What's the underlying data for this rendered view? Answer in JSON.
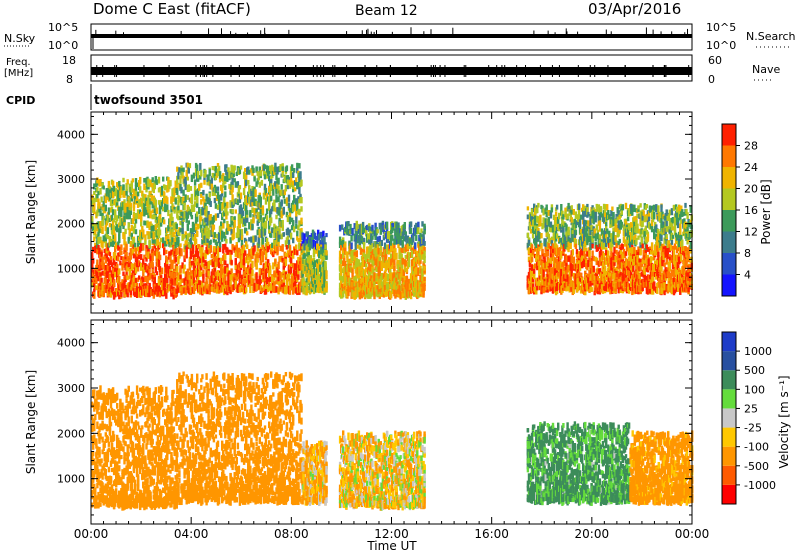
{
  "header": {
    "station": "Dome C East (fitACF)",
    "beam": "Beam 12",
    "date": "03/Apr/2016"
  },
  "params": {
    "nsky_label": "N.Sky",
    "nsky_ticks": [
      "10^5",
      "10^0"
    ],
    "nsearch_label": "N.Search",
    "freq_label": "Freq.",
    "freq_unit": "[MHz]",
    "freq_ticks": [
      "18",
      "8"
    ],
    "nave_label": "Nave",
    "nave_ticks": [
      "60",
      "0"
    ],
    "cpid_label": "CPID",
    "cpid_value": "twofsound 3501"
  },
  "chart_data": [
    {
      "type": "heatmap",
      "panel": "power",
      "ylabel": "Slant Range [km]",
      "ylim": [
        0,
        4500
      ],
      "yticks": [
        "4000",
        "3000",
        "2000",
        "1000"
      ],
      "colorbar": {
        "label": "Power [dB]",
        "ticks": [
          "28",
          "24",
          "20",
          "16",
          "12",
          "8",
          "4"
        ],
        "range": [
          0,
          32
        ]
      },
      "scatter_regions": [
        {
          "t_start": 0.0,
          "t_end": 3.4,
          "r_low": 400,
          "r_high": 3000,
          "level": 22
        },
        {
          "t_start": 3.4,
          "t_end": 8.4,
          "r_low": 500,
          "r_high": 3300,
          "level": 20
        },
        {
          "t_start": 8.4,
          "t_end": 9.4,
          "r_low": 500,
          "r_high": 1800,
          "level": 12
        },
        {
          "t_start": 9.9,
          "t_end": 13.3,
          "r_low": 400,
          "r_high": 2000,
          "level": 16
        },
        {
          "t_start": 17.4,
          "t_end": 24.0,
          "r_low": 500,
          "r_high": 2400,
          "level": 20
        }
      ]
    },
    {
      "type": "heatmap",
      "panel": "velocity",
      "ylabel": "Slant Range [km]",
      "xlabel": "Time UT",
      "xticks": [
        "00:00",
        "04:00",
        "08:00",
        "12:00",
        "16:00",
        "20:00",
        "00:00"
      ],
      "xlim": [
        0,
        24
      ],
      "ylim": [
        0,
        4500
      ],
      "yticks": [
        "4000",
        "3000",
        "2000",
        "1000"
      ],
      "colorbar": {
        "label": "Velocity [m s⁻¹]",
        "ticks": [
          "1000",
          "500",
          "100",
          "25",
          "-25",
          "-100",
          "-500",
          "-1000"
        ]
      },
      "scatter_regions": [
        {
          "t_start": 0.0,
          "t_end": 3.4,
          "r_low": 400,
          "r_high": 3000,
          "velocity": -250
        },
        {
          "t_start": 3.4,
          "t_end": 8.4,
          "r_low": 500,
          "r_high": 3300,
          "velocity": -300
        },
        {
          "t_start": 8.4,
          "t_end": 9.4,
          "r_low": 500,
          "r_high": 1800,
          "velocity": -100
        },
        {
          "t_start": 9.9,
          "t_end": 13.3,
          "r_low": 400,
          "r_high": 2000,
          "velocity": -60
        },
        {
          "t_start": 17.4,
          "t_end": 21.5,
          "r_low": 500,
          "r_high": 2200,
          "velocity": 150
        },
        {
          "t_start": 21.5,
          "t_end": 24.0,
          "r_low": 500,
          "r_high": 2000,
          "velocity": -200
        }
      ]
    }
  ]
}
